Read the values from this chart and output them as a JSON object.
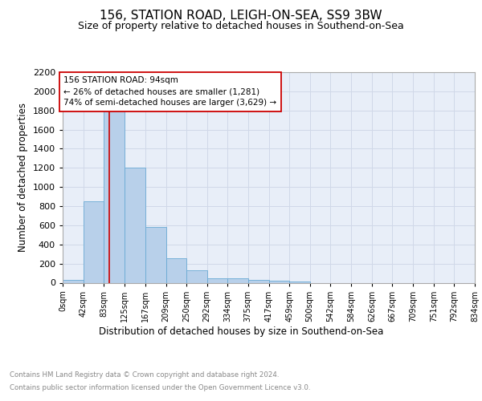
{
  "title": "156, STATION ROAD, LEIGH-ON-SEA, SS9 3BW",
  "subtitle": "Size of property relative to detached houses in Southend-on-Sea",
  "xlabel": "Distribution of detached houses by size in Southend-on-Sea",
  "ylabel": "Number of detached properties",
  "bar_edges": [
    0,
    42,
    83,
    125,
    167,
    209,
    250,
    292,
    334,
    375,
    417,
    459,
    500,
    542,
    584,
    626,
    667,
    709,
    751,
    792,
    834
  ],
  "bar_heights": [
    30,
    850,
    1800,
    1200,
    585,
    255,
    130,
    45,
    45,
    30,
    20,
    15,
    0,
    0,
    0,
    0,
    0,
    0,
    0,
    0
  ],
  "bar_color": "#b8d0ea",
  "bar_edge_color": "#6aaad4",
  "property_line_x": 94,
  "property_line_color": "#cc0000",
  "annotation_text": "156 STATION ROAD: 94sqm\n← 26% of detached houses are smaller (1,281)\n74% of semi-detached houses are larger (3,629) →",
  "annotation_box_color": "#ffffff",
  "annotation_box_edge": "#cc0000",
  "ylim": [
    0,
    2200
  ],
  "yticks": [
    0,
    200,
    400,
    600,
    800,
    1000,
    1200,
    1400,
    1600,
    1800,
    2000,
    2200
  ],
  "tick_labels": [
    "0sqm",
    "42sqm",
    "83sqm",
    "125sqm",
    "167sqm",
    "209sqm",
    "250sqm",
    "292sqm",
    "334sqm",
    "375sqm",
    "417sqm",
    "459sqm",
    "500sqm",
    "542sqm",
    "584sqm",
    "626sqm",
    "667sqm",
    "709sqm",
    "751sqm",
    "792sqm",
    "834sqm"
  ],
  "grid_color": "#d0d8e8",
  "bg_color": "#e8eef8",
  "footer_line1": "Contains HM Land Registry data © Crown copyright and database right 2024.",
  "footer_line2": "Contains public sector information licensed under the Open Government Licence v3.0."
}
